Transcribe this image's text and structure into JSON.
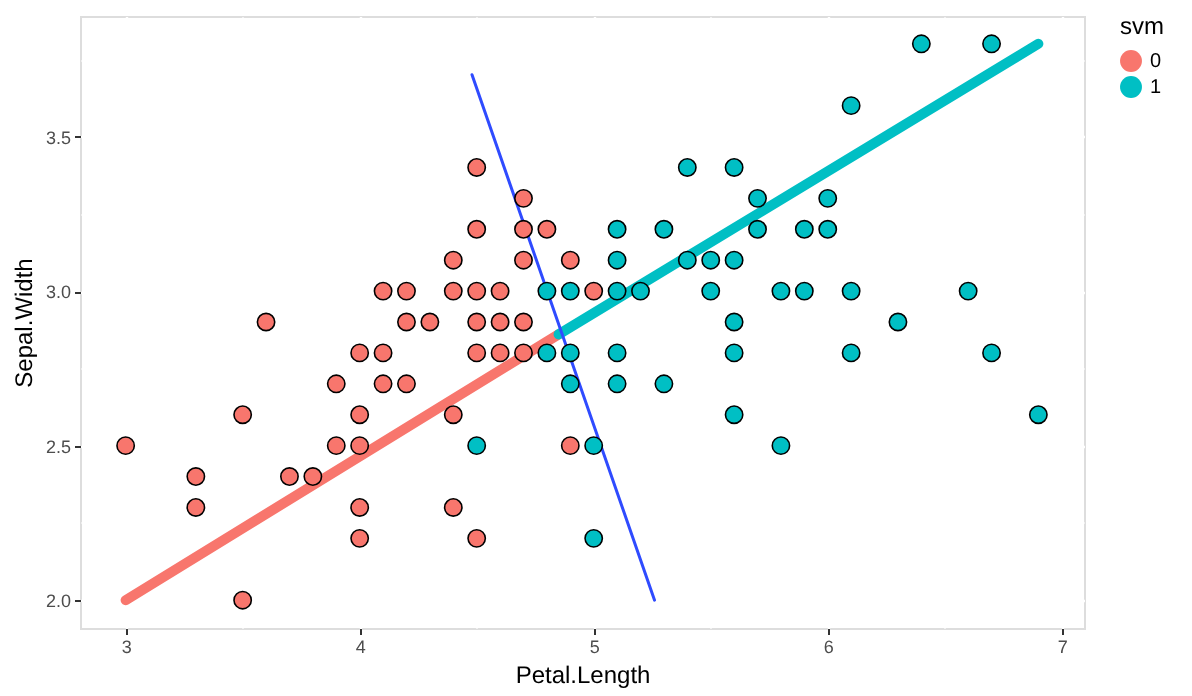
{
  "chart_data": {
    "type": "scatter",
    "xlabel": "Petal.Length",
    "ylabel": "Sepal.Width",
    "legend_title": "svm",
    "legend": "right",
    "grid": true,
    "xlim": [
      2.805,
      7.095
    ],
    "ylim": [
      1.91,
      3.89
    ],
    "xticks": [
      3,
      {
        "value": 3.5,
        "label": null
      },
      4,
      {
        "value": 4.5,
        "label": null
      },
      5,
      {
        "value": 5.5,
        "label": null
      },
      6,
      {
        "value": 6.5,
        "label": null
      },
      7
    ],
    "yticks": [
      {
        "value": 2.0,
        "label": "2.0"
      },
      {
        "value": 2.25,
        "label": null
      },
      {
        "value": 2.5,
        "label": "2.5"
      },
      {
        "value": 2.75,
        "label": null
      },
      {
        "value": 3.0,
        "label": "3.0"
      },
      {
        "value": 3.25,
        "label": null
      },
      {
        "value": 3.5,
        "label": "3.5"
      },
      {
        "value": 3.75,
        "label": null
      }
    ],
    "series": [
      {
        "type": "line",
        "marker": "none",
        "color": "#f8766d",
        "x": [
          3.0,
          4.85
        ],
        "values": [
          2.0,
          2.86
        ]
      },
      {
        "type": "line",
        "marker": "none",
        "color": "#00bfc4",
        "x": [
          4.85,
          6.9
        ],
        "values": [
          2.86,
          3.8
        ]
      },
      {
        "type": "line",
        "marker": "none",
        "color": "#2f4bff",
        "x": [
          4.48,
          5.26
        ],
        "values": [
          3.7,
          2.0
        ]
      },
      {
        "name": "0",
        "marker": "circle",
        "color": "#f8766d",
        "x": [
          4.5,
          4.7,
          4.5,
          4.7,
          4.8,
          4.4,
          4.7,
          4.9,
          4.1,
          4.2,
          4.4,
          4.5,
          4.6,
          5.0,
          3.6,
          4.2,
          4.3,
          4.5,
          4.6,
          4.7,
          4.0,
          4.1,
          4.5,
          4.6,
          4.7,
          3.9,
          4.1,
          4.2,
          3.5,
          4.0,
          4.4,
          3.0,
          3.9,
          4.0,
          4.9,
          3.3,
          3.7,
          3.8,
          3.3,
          4.0,
          4.4,
          4.0,
          4.5,
          3.5
        ],
        "values": [
          3.4,
          3.3,
          3.2,
          3.2,
          3.2,
          3.1,
          3.1,
          3.1,
          3.0,
          3.0,
          3.0,
          3.0,
          3.0,
          3.0,
          2.9,
          2.9,
          2.9,
          2.9,
          2.9,
          2.9,
          2.8,
          2.8,
          2.8,
          2.8,
          2.8,
          2.7,
          2.7,
          2.7,
          2.6,
          2.6,
          2.6,
          2.5,
          2.5,
          2.5,
          2.5,
          2.4,
          2.4,
          2.4,
          2.3,
          2.3,
          2.3,
          2.2,
          2.2,
          2.0
        ]
      },
      {
        "name": "1",
        "marker": "circle",
        "color": "#00bfc4",
        "x": [
          6.4,
          6.7,
          6.1,
          5.4,
          5.6,
          5.7,
          6.0,
          5.1,
          5.3,
          5.7,
          5.9,
          6.0,
          5.1,
          5.4,
          5.5,
          5.6,
          4.8,
          4.9,
          5.1,
          5.2,
          5.5,
          5.8,
          5.9,
          6.1,
          6.6,
          5.6,
          6.3,
          4.8,
          4.9,
          5.1,
          5.6,
          6.1,
          6.7,
          4.9,
          5.1,
          5.3,
          5.6,
          6.9,
          4.5,
          5.0,
          5.8,
          5.0
        ],
        "values": [
          3.8,
          3.8,
          3.6,
          3.4,
          3.4,
          3.3,
          3.3,
          3.2,
          3.2,
          3.2,
          3.2,
          3.2,
          3.1,
          3.1,
          3.1,
          3.1,
          3.0,
          3.0,
          3.0,
          3.0,
          3.0,
          3.0,
          3.0,
          3.0,
          3.0,
          2.9,
          2.9,
          2.8,
          2.8,
          2.8,
          2.8,
          2.8,
          2.8,
          2.7,
          2.7,
          2.7,
          2.6,
          2.6,
          2.5,
          2.5,
          2.5,
          2.2
        ]
      }
    ]
  }
}
